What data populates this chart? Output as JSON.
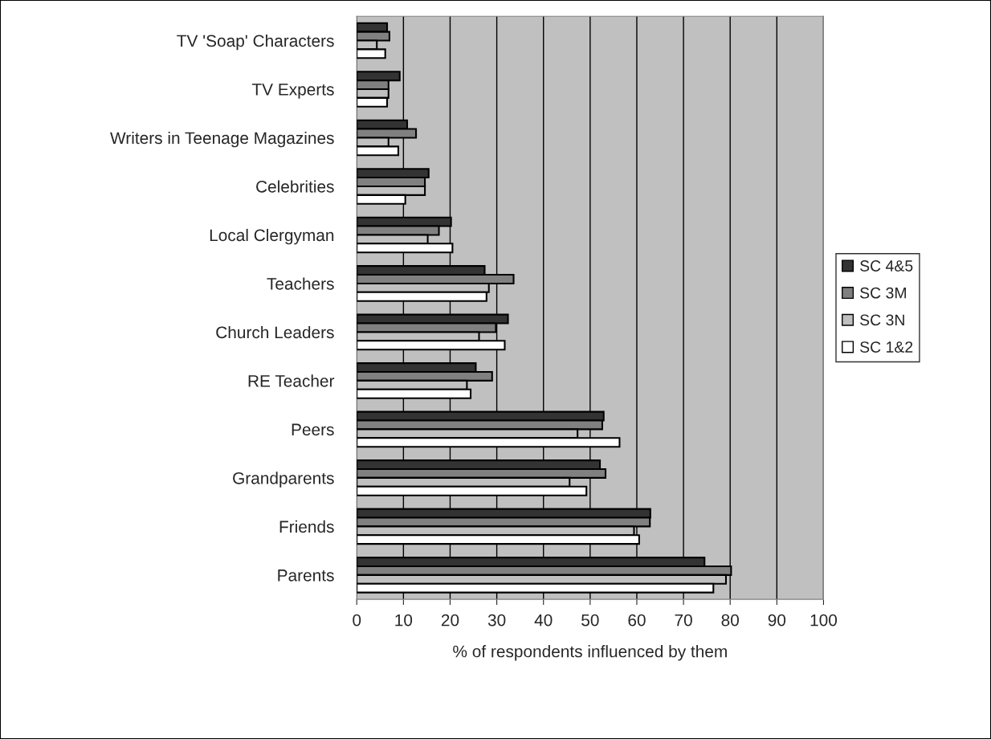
{
  "chart_data": {
    "type": "bar",
    "orientation": "horizontal",
    "xlabel": "% of respondents influenced by them",
    "categories": [
      "TV 'Soap' Characters",
      "TV Experts",
      "Writers in Teenage Magazines",
      "Celebrities",
      "Local Clergyman",
      "Teachers",
      "Church Leaders",
      "RE Teacher",
      "Peers",
      "Grandparents",
      "Friends",
      "Parents"
    ],
    "series": [
      {
        "name": "SC 4&5",
        "color": "#333333",
        "values": [
          6.5,
          9.2,
          10.8,
          15.4,
          20.2,
          27.4,
          32.4,
          25.5,
          52.9,
          52.1,
          62.9,
          74.5
        ]
      },
      {
        "name": "SC 3M",
        "color": "#808080",
        "values": [
          7.0,
          6.8,
          12.7,
          14.6,
          17.6,
          33.6,
          29.8,
          29.0,
          52.6,
          53.3,
          62.8,
          80.2
        ]
      },
      {
        "name": "SC 3N",
        "color": "#c0c0c0",
        "values": [
          4.3,
          6.8,
          6.8,
          14.6,
          15.2,
          28.3,
          26.2,
          23.6,
          47.3,
          45.6,
          59.4,
          79.1
        ]
      },
      {
        "name": "SC 1&2",
        "color": "#ffffff",
        "values": [
          6.1,
          6.5,
          8.9,
          10.4,
          20.5,
          27.8,
          31.7,
          24.4,
          56.3,
          49.2,
          60.5,
          76.4
        ]
      }
    ],
    "xlim": [
      0,
      100
    ],
    "xticks": [
      0,
      10,
      20,
      30,
      40,
      50,
      60,
      70,
      80,
      90,
      100
    ],
    "grid": "x",
    "legend": "right"
  }
}
